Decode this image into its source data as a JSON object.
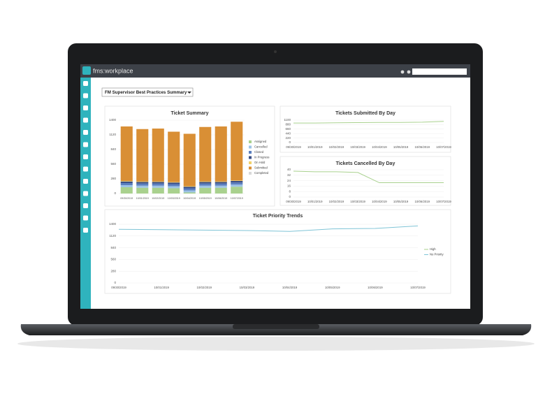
{
  "app": {
    "logo": "fms:workplace",
    "dropdown": "FM Supervisor Best Practices Summary"
  },
  "chart_data": [
    {
      "type": "bar",
      "stacked": true,
      "title": "Ticket Summary",
      "categories": [
        "09/30/2019",
        "10/01/2019",
        "10/02/2019",
        "10/03/2019",
        "10/04/2019",
        "10/05/2019",
        "10/06/2019",
        "10/07/2019"
      ],
      "series": [
        {
          "name": "Assigned",
          "color": "#a9d18e",
          "values": [
            120,
            110,
            110,
            100,
            20,
            110,
            110,
            130
          ]
        },
        {
          "name": "Cancelled",
          "color": "#9dc3e6",
          "values": [
            40,
            40,
            40,
            40,
            40,
            40,
            40,
            40
          ]
        },
        {
          "name": "Closed",
          "color": "#5b7fbf",
          "values": [
            40,
            40,
            40,
            40,
            40,
            40,
            40,
            40
          ]
        },
        {
          "name": "In Progress",
          "color": "#3b4f86",
          "values": [
            30,
            30,
            30,
            30,
            30,
            30,
            30,
            30
          ]
        },
        {
          "name": "On Hold",
          "color": "#f2d16b",
          "values": [
            10,
            10,
            10,
            10,
            10,
            10,
            10,
            10
          ]
        },
        {
          "name": "Submitted",
          "color": "#d98f35",
          "values": [
            1040,
            1000,
            1010,
            960,
            1000,
            1040,
            1050,
            1120
          ]
        },
        {
          "name": "Completed",
          "color": "#d9d9d9",
          "values": [
            0,
            0,
            0,
            0,
            0,
            0,
            0,
            0
          ]
        }
      ],
      "ylim": [
        0,
        1400
      ],
      "yticks": [
        0,
        280,
        560,
        840,
        1120,
        1400
      ],
      "grid": true,
      "legend": "right"
    },
    {
      "type": "line",
      "title": "Tickets Submitted By Day",
      "categories": [
        "09/30/2019",
        "10/01/2019",
        "10/02/2019",
        "10/03/2019",
        "10/04/2019",
        "10/05/2019",
        "10/06/2019",
        "10/07/2019"
      ],
      "series": [
        {
          "color": "#a9d18e",
          "values": [
            960,
            960,
            970,
            980,
            990,
            990,
            1000,
            1040
          ]
        }
      ],
      "ylim": [
        0,
        1100
      ],
      "yticks": [
        0,
        220,
        440,
        660,
        880,
        1100
      ],
      "grid": true
    },
    {
      "type": "line",
      "title": "Tickets Cancelled By Day",
      "categories": [
        "09/30/2019",
        "10/01/2019",
        "10/02/2019",
        "10/03/2019",
        "10/04/2019",
        "10/05/2019",
        "10/06/2019",
        "10/07/2019"
      ],
      "series": [
        {
          "color": "#a9d18e",
          "values": [
            38,
            37,
            37,
            36,
            21,
            21,
            21,
            21
          ]
        }
      ],
      "ylim": [
        0,
        40
      ],
      "yticks": [
        0,
        8,
        16,
        24,
        32,
        40
      ],
      "grid": true
    },
    {
      "type": "line",
      "title": "Ticket Priority Trends",
      "categories": [
        "09/30/2019",
        "10/01/2019",
        "10/02/2019",
        "10/03/2019",
        "10/04/2019",
        "10/05/2019",
        "10/06/2019",
        "10/07/2019"
      ],
      "series": [
        {
          "name": "High",
          "color": "#a9d18e",
          "values": [
            null,
            null,
            null,
            null,
            null,
            null,
            null,
            null
          ]
        },
        {
          "name": "No Priority",
          "color": "#7fc4d6",
          "values": [
            1280,
            1270,
            1260,
            1250,
            1230,
            1290,
            1300,
            1360
          ]
        }
      ],
      "ylim": [
        0,
        1400
      ],
      "yticks": [
        0,
        280,
        560,
        840,
        1120,
        1400
      ],
      "grid": true,
      "legend": "right"
    }
  ]
}
